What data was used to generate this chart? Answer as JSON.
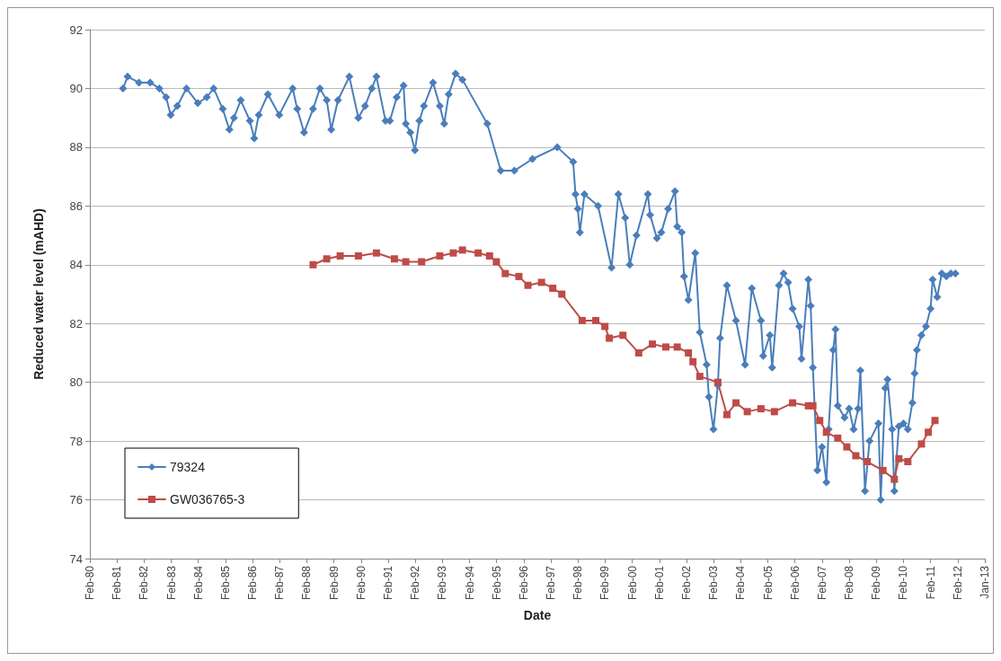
{
  "chart_data": {
    "type": "line",
    "xlabel": "Date",
    "ylabel": "Reduced water level (mAHD)",
    "xlim": [
      "1980-02-09",
      "2013-01-31"
    ],
    "xticks": [
      {
        "value": "1980-02-09",
        "label": "Feb-80"
      },
      {
        "value": "1981-02-08",
        "label": "Feb-81"
      },
      {
        "value": "1982-02-08",
        "label": "Feb-82"
      },
      {
        "value": "1983-02-08",
        "label": "Feb-83"
      },
      {
        "value": "1984-02-08",
        "label": "Feb-84"
      },
      {
        "value": "1985-02-07",
        "label": "Feb-85"
      },
      {
        "value": "1986-02-07",
        "label": "Feb-86"
      },
      {
        "value": "1987-02-07",
        "label": "Feb-87"
      },
      {
        "value": "1988-02-07",
        "label": "Feb-88"
      },
      {
        "value": "1989-02-06",
        "label": "Feb-89"
      },
      {
        "value": "1990-02-06",
        "label": "Feb-90"
      },
      {
        "value": "1991-02-06",
        "label": "Feb-91"
      },
      {
        "value": "1992-02-06",
        "label": "Feb-92"
      },
      {
        "value": "1993-02-05",
        "label": "Feb-93"
      },
      {
        "value": "1994-02-05",
        "label": "Feb-94"
      },
      {
        "value": "1995-02-05",
        "label": "Feb-95"
      },
      {
        "value": "1996-02-05",
        "label": "Feb-96"
      },
      {
        "value": "1997-02-04",
        "label": "Feb-97"
      },
      {
        "value": "1998-02-04",
        "label": "Feb-98"
      },
      {
        "value": "1999-02-04",
        "label": "Feb-99"
      },
      {
        "value": "2000-02-04",
        "label": "Feb-00"
      },
      {
        "value": "2001-02-03",
        "label": "Feb-01"
      },
      {
        "value": "2002-02-03",
        "label": "Feb-02"
      },
      {
        "value": "2003-02-03",
        "label": "Feb-03"
      },
      {
        "value": "2004-02-03",
        "label": "Feb-04"
      },
      {
        "value": "2005-02-02",
        "label": "Feb-05"
      },
      {
        "value": "2006-02-02",
        "label": "Feb-06"
      },
      {
        "value": "2007-02-02",
        "label": "Feb-07"
      },
      {
        "value": "2008-02-02",
        "label": "Feb-08"
      },
      {
        "value": "2009-02-01",
        "label": "Feb-09"
      },
      {
        "value": "2010-02-01",
        "label": "Feb-10"
      },
      {
        "value": "2011-02-01",
        "label": "Feb-11"
      },
      {
        "value": "2012-02-01",
        "label": "Feb-12"
      },
      {
        "value": "2013-01-31",
        "label": "Jan-13"
      }
    ],
    "ylim": [
      74,
      92
    ],
    "yticks": [
      74,
      76,
      78,
      80,
      82,
      84,
      86,
      88,
      90,
      92
    ],
    "grid": "y",
    "legend": "bottom left",
    "series": [
      {
        "name": "79324",
        "color": "#4a7ebb",
        "marker": "diamond",
        "x": [
          "1981-05",
          "1981-07",
          "1981-12",
          "1982-05",
          "1982-09",
          "1982-12",
          "1983-02",
          "1983-05",
          "1983-09",
          "1984-02",
          "1984-06",
          "1984-09",
          "1985-01",
          "1985-04",
          "1985-06",
          "1985-09",
          "1986-01",
          "1986-03",
          "1986-05",
          "1986-09",
          "1987-02",
          "1987-08",
          "1987-10",
          "1988-01",
          "1988-05",
          "1988-08",
          "1988-11",
          "1989-01",
          "1989-04",
          "1989-09",
          "1990-01",
          "1990-04",
          "1990-07",
          "1990-09",
          "1991-01",
          "1991-03",
          "1991-06",
          "1991-09",
          "1991-10",
          "1991-12",
          "1992-02",
          "1992-04",
          "1992-06",
          "1992-10",
          "1993-01",
          "1993-03",
          "1993-05",
          "1993-08",
          "1993-11",
          "1994-10",
          "1995-04",
          "1995-10",
          "1996-06",
          "1997-05",
          "1997-12",
          "1998-01",
          "1998-02",
          "1998-03",
          "1998-05",
          "1998-11",
          "1999-05",
          "1999-08",
          "1999-11",
          "2000-01",
          "2000-04",
          "2000-09",
          "2000-10",
          "2001-01",
          "2001-03",
          "2001-06",
          "2001-09",
          "2001-10",
          "2001-12",
          "2002-01",
          "2002-03",
          "2002-06",
          "2002-08",
          "2002-11",
          "2002-12",
          "2003-02",
          "2003-04",
          "2003-05",
          "2003-08",
          "2003-12",
          "2004-04",
          "2004-07",
          "2004-11",
          "2004-12",
          "2005-03",
          "2005-04",
          "2005-07",
          "2005-09",
          "2005-11",
          "2006-01",
          "2006-04",
          "2006-05",
          "2006-08",
          "2006-09",
          "2006-10",
          "2006-12",
          "2007-02",
          "2007-04",
          "2007-05",
          "2007-07",
          "2007-08",
          "2007-09",
          "2007-12",
          "2008-02",
          "2008-04",
          "2008-06",
          "2008-07",
          "2008-09",
          "2008-11",
          "2009-03",
          "2009-04",
          "2009-06",
          "2009-07",
          "2009-09",
          "2009-10",
          "2009-12",
          "2010-02",
          "2010-04",
          "2010-06",
          "2010-07",
          "2010-08",
          "2010-10",
          "2010-12",
          "2011-02",
          "2011-03",
          "2011-05",
          "2011-07",
          "2011-09",
          "2011-11",
          "2012-01"
        ],
        "values": [
          90.0,
          90.4,
          90.2,
          90.2,
          90.0,
          89.7,
          89.1,
          89.4,
          90.0,
          89.5,
          89.7,
          90.0,
          89.3,
          88.6,
          89.0,
          89.6,
          88.9,
          88.3,
          89.1,
          89.8,
          89.1,
          90.0,
          89.3,
          88.5,
          89.3,
          90.0,
          89.6,
          88.6,
          89.6,
          90.4,
          89.0,
          89.4,
          90.0,
          90.4,
          88.9,
          88.9,
          89.7,
          90.1,
          88.8,
          88.5,
          87.9,
          88.9,
          89.4,
          90.2,
          89.4,
          88.8,
          89.8,
          90.5,
          90.3,
          88.8,
          87.2,
          87.2,
          87.6,
          88.0,
          87.5,
          86.4,
          85.9,
          85.1,
          86.4,
          86.0,
          83.9,
          86.4,
          85.6,
          84.0,
          85.0,
          86.4,
          85.7,
          84.9,
          85.1,
          85.9,
          86.5,
          85.3,
          85.1,
          83.6,
          82.8,
          84.4,
          81.7,
          80.6,
          79.5,
          78.4,
          79.9,
          81.5,
          83.3,
          82.1,
          80.6,
          83.2,
          82.1,
          80.9,
          81.6,
          80.5,
          83.3,
          83.7,
          83.4,
          82.5,
          81.9,
          80.8,
          83.5,
          82.6,
          80.5,
          77.0,
          77.8,
          76.6,
          78.4,
          81.1,
          81.8,
          79.2,
          78.8,
          79.1,
          78.4,
          79.1,
          80.4,
          76.3,
          78.0,
          78.6,
          76.0,
          79.8,
          80.1,
          78.4,
          76.3,
          78.5,
          78.6,
          78.4,
          79.3,
          80.3,
          81.1,
          81.6,
          81.9,
          82.5,
          83.5,
          82.9,
          83.7,
          83.6,
          83.7,
          83.7
        ]
      },
      {
        "name": "GW036765-3",
        "color": "#be4b48",
        "marker": "square",
        "x": [
          "1988-05",
          "1988-11",
          "1989-05",
          "1990-01",
          "1990-09",
          "1991-05",
          "1991-10",
          "1992-05",
          "1993-01",
          "1993-07",
          "1993-11",
          "1994-06",
          "1994-11",
          "1995-02",
          "1995-06",
          "1995-12",
          "1996-04",
          "1996-10",
          "1997-03",
          "1997-07",
          "1998-04",
          "1998-10",
          "1999-02",
          "1999-04",
          "1999-10",
          "2000-05",
          "2000-11",
          "2001-05",
          "2001-10",
          "2002-03",
          "2002-05",
          "2002-08",
          "2003-04",
          "2003-08",
          "2003-12",
          "2004-05",
          "2004-11",
          "2005-05",
          "2006-01",
          "2006-08",
          "2006-10",
          "2007-01",
          "2007-04",
          "2007-09",
          "2008-01",
          "2008-05",
          "2008-10",
          "2009-05",
          "2009-10",
          "2009-12",
          "2010-04",
          "2010-10",
          "2011-01",
          "2011-04"
        ],
        "values": [
          84.0,
          84.2,
          84.3,
          84.3,
          84.4,
          84.2,
          84.1,
          84.1,
          84.3,
          84.4,
          84.5,
          84.4,
          84.3,
          84.1,
          83.7,
          83.6,
          83.3,
          83.4,
          83.2,
          83.0,
          82.1,
          82.1,
          81.9,
          81.5,
          81.6,
          81.0,
          81.3,
          81.2,
          81.2,
          81.0,
          80.7,
          80.2,
          80.0,
          78.9,
          79.3,
          79.0,
          79.1,
          79.0,
          79.3,
          79.2,
          79.2,
          78.7,
          78.3,
          78.1,
          77.8,
          77.5,
          77.3,
          77.0,
          76.7,
          77.4,
          77.3,
          77.9,
          78.3,
          78.7
        ]
      }
    ]
  }
}
